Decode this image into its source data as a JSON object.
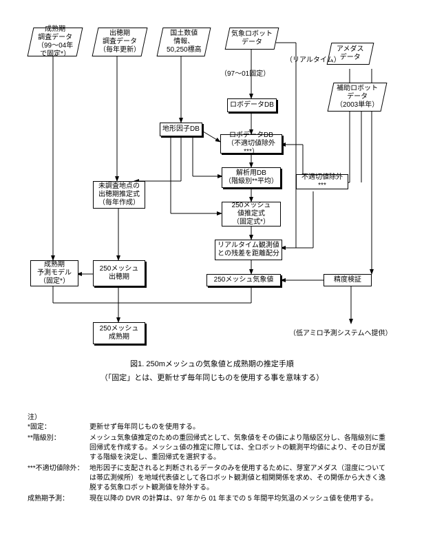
{
  "nodes": {
    "n1": {
      "text": "成熟期\n調査データ\n（99～04年\nで固定*）"
    },
    "n2": {
      "text": "出穂期\n調査データ\n（毎年更新）"
    },
    "n3": {
      "text": "国土数値\n情報、\n50,250標高"
    },
    "n4": {
      "text": "気象ロボット\nデータ"
    },
    "n5": {
      "text": "アメダス\nデータ"
    },
    "n6": {
      "text": "補助ロボット\nデータ\n（2003単年）"
    },
    "n7": {
      "text": "地形因子DB"
    },
    "n8": {
      "text": "ロボデータDB"
    },
    "n9": {
      "text": "ロボデータDB\n（不適切値除外***）"
    },
    "n10": {
      "text": "解析用DB\n（階級別**平均）"
    },
    "n11": {
      "text": "不適切値除外***"
    },
    "n12": {
      "text": "未調査地点の\n出穂期推定式\n（毎年作成）"
    },
    "n13": {
      "text": "250メッシュ\n値推定式\n（固定式*）"
    },
    "n14": {
      "text": "リアルタイム観測値\nとの残差を距離配分"
    },
    "n15": {
      "text": "成熟期\n予測モデル\n（固定*）"
    },
    "n16": {
      "text": "250メッシュ\n出穂期"
    },
    "n17": {
      "text": "250メッシュ気象値"
    },
    "n18": {
      "text": "精度検証"
    },
    "n19": {
      "text": "250メッシュ\n成熟期"
    }
  },
  "labels": {
    "l1": "（97～01固定）",
    "l2": "（リアルタイム）",
    "l3": "（低アミロ予測システムへ提供）"
  },
  "caption": {
    "line1": "図1. 250mメッシュの気象値と成熟期の推定手順",
    "line2": "（「固定」とは、更新せず毎年同じものを使用する事を意味する）"
  },
  "notes": {
    "header": "注）",
    "rows": [
      {
        "label": "*固定：",
        "text": "更新せず毎年同じものを使用する。"
      },
      {
        "label": "**階級別：",
        "text": "メッシュ気象値推定のための重回帰式として、気象値をその値により階級区分し、各階級別に重回帰式を作成する。メッシュ値の推定に際しては、全ロボットの観測平均値により、その日が属する階級を決定し、重回帰式を選択する。"
      },
      {
        "label": "***不適切値除外：",
        "text": "地形因子に支配されると判断されるデータのみを使用するために、芽室アメダス（湿度については帯広測候所）を地域代表値として各ロボット観測値と相関関係を求め、その関係から大きく逸脱する気象ロボット観測値を除外する。"
      },
      {
        "label": "成熟期予測：",
        "text": "現在以降の DVR の計算は、97 年から 01 年までの 5 年間平均気温のメッシュ値を使用する。"
      }
    ]
  }
}
